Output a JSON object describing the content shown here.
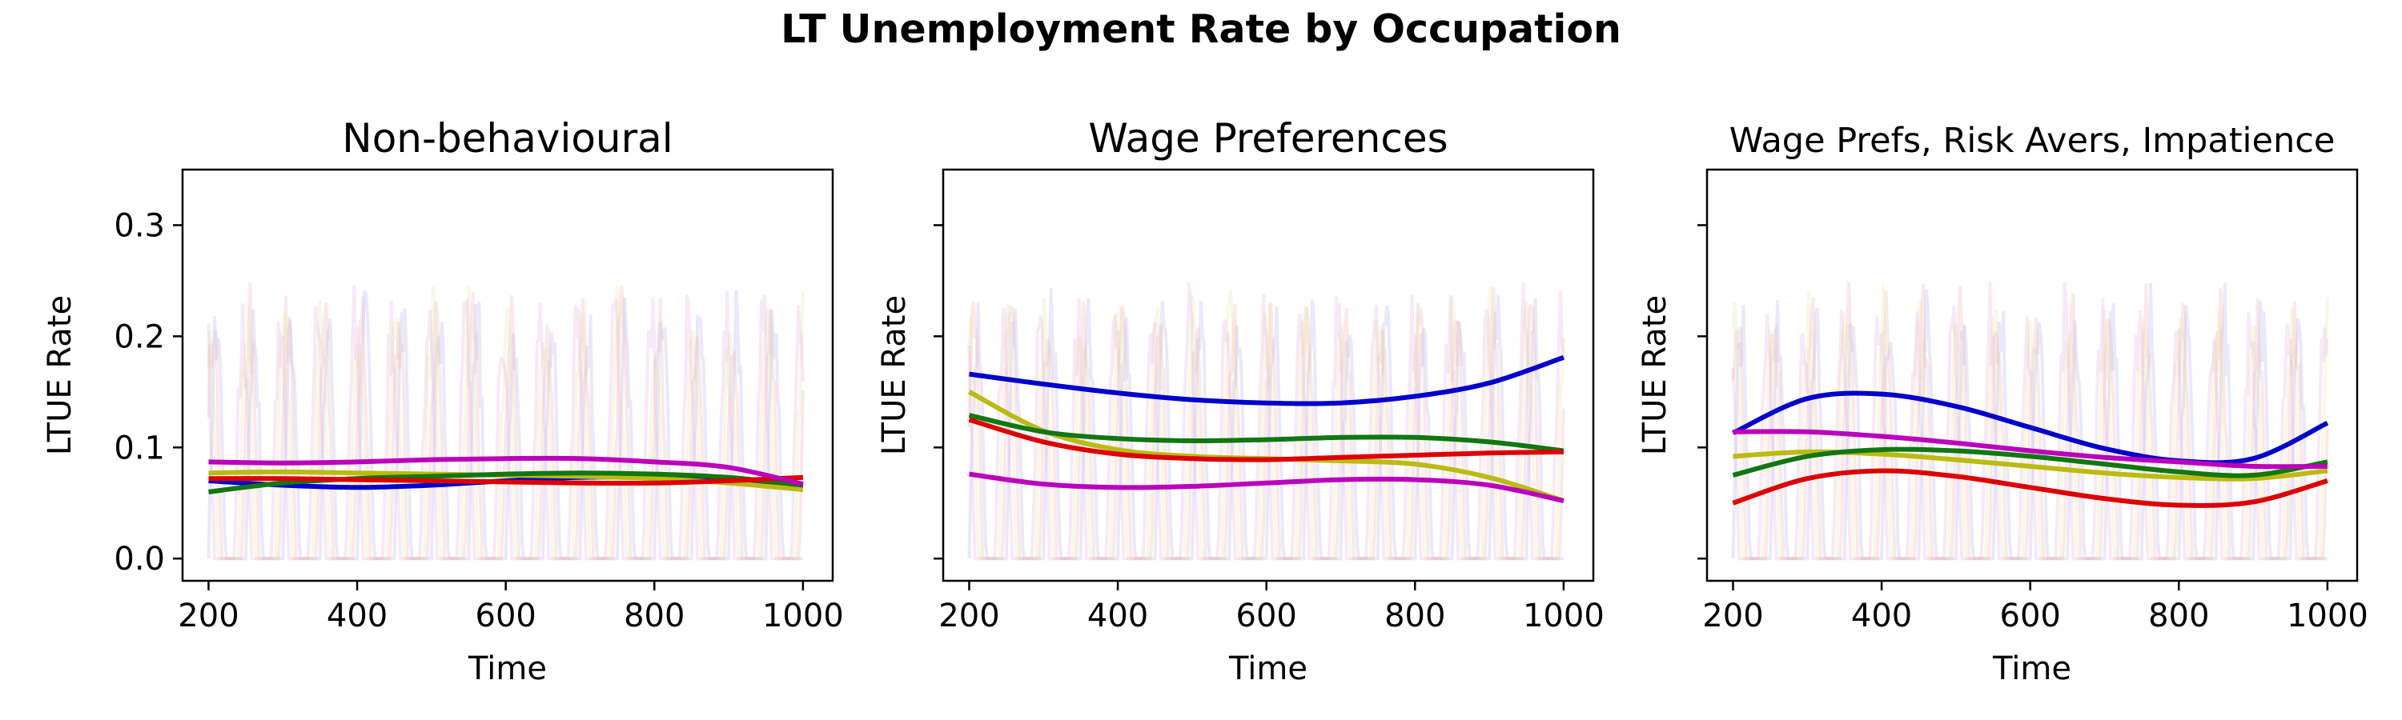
{
  "figure": {
    "title": "LT Unemployment Rate by Occupation"
  },
  "chart_data": [
    {
      "type": "line",
      "title": "Non-behavioural",
      "xlabel": "Time",
      "ylabel": "LTUE Rate",
      "xlim": [
        165,
        1040
      ],
      "ylim": [
        -0.02,
        0.35
      ],
      "xticks": [
        200,
        400,
        600,
        800,
        1000
      ],
      "yticks": [
        0.0,
        0.1,
        0.2,
        0.3
      ],
      "ytick_labels": [
        "0.0",
        "0.1",
        "0.2",
        "0.3"
      ],
      "x": [
        200,
        300,
        400,
        500,
        600,
        700,
        800,
        900,
        1000
      ],
      "series": [
        {
          "color": "#0000cc",
          "values": [
            0.07,
            0.066,
            0.064,
            0.066,
            0.07,
            0.073,
            0.073,
            0.07,
            0.064
          ]
        },
        {
          "color": "#bbbb11",
          "values": [
            0.077,
            0.078,
            0.077,
            0.076,
            0.075,
            0.074,
            0.072,
            0.068,
            0.062
          ]
        },
        {
          "color": "#117711",
          "values": [
            0.06,
            0.068,
            0.072,
            0.074,
            0.076,
            0.077,
            0.076,
            0.073,
            0.066
          ]
        },
        {
          "color": "#dd0000",
          "values": [
            0.072,
            0.072,
            0.071,
            0.07,
            0.069,
            0.068,
            0.068,
            0.07,
            0.073
          ]
        },
        {
          "color": "#bb00bb",
          "values": [
            0.087,
            0.086,
            0.087,
            0.089,
            0.09,
            0.09,
            0.087,
            0.082,
            0.067
          ]
        }
      ]
    },
    {
      "type": "line",
      "title": "Wage Preferences",
      "xlabel": "Time",
      "ylabel": "LTUE Rate",
      "xlim": [
        165,
        1040
      ],
      "ylim": [
        -0.02,
        0.35
      ],
      "xticks": [
        200,
        400,
        600,
        800,
        1000
      ],
      "yticks": [
        0.0,
        0.1,
        0.2,
        0.3
      ],
      "ytick_labels": [
        "",
        "",
        "",
        ""
      ],
      "x": [
        200,
        300,
        400,
        500,
        600,
        700,
        800,
        900,
        1000
      ],
      "series": [
        {
          "color": "#0000cc",
          "values": [
            0.166,
            0.157,
            0.149,
            0.143,
            0.14,
            0.14,
            0.146,
            0.158,
            0.181
          ]
        },
        {
          "color": "#bbbb11",
          "values": [
            0.15,
            0.115,
            0.098,
            0.092,
            0.09,
            0.088,
            0.085,
            0.073,
            0.052
          ]
        },
        {
          "color": "#117711",
          "values": [
            0.129,
            0.114,
            0.108,
            0.106,
            0.107,
            0.109,
            0.109,
            0.105,
            0.097
          ]
        },
        {
          "color": "#dd0000",
          "values": [
            0.125,
            0.105,
            0.094,
            0.09,
            0.089,
            0.091,
            0.093,
            0.095,
            0.096
          ]
        },
        {
          "color": "#bb00bb",
          "values": [
            0.076,
            0.067,
            0.064,
            0.065,
            0.068,
            0.071,
            0.071,
            0.066,
            0.052
          ]
        }
      ]
    },
    {
      "type": "line",
      "title": "Wage Prefs, Risk Avers, Impatience",
      "xlabel": "Time",
      "ylabel": "LTUE Rate",
      "xlim": [
        165,
        1040
      ],
      "ylim": [
        -0.02,
        0.35
      ],
      "xticks": [
        200,
        400,
        600,
        800,
        1000
      ],
      "yticks": [
        0.0,
        0.1,
        0.2,
        0.3
      ],
      "ytick_labels": [
        "",
        "",
        "",
        ""
      ],
      "x": [
        200,
        300,
        400,
        500,
        600,
        700,
        800,
        900,
        1000
      ],
      "series": [
        {
          "color": "#0000cc",
          "values": [
            0.113,
            0.144,
            0.148,
            0.137,
            0.118,
            0.099,
            0.088,
            0.09,
            0.122
          ]
        },
        {
          "color": "#bbbb11",
          "values": [
            0.092,
            0.096,
            0.094,
            0.089,
            0.083,
            0.077,
            0.073,
            0.072,
            0.079
          ]
        },
        {
          "color": "#117711",
          "values": [
            0.075,
            0.092,
            0.098,
            0.097,
            0.092,
            0.085,
            0.078,
            0.075,
            0.087
          ]
        },
        {
          "color": "#dd0000",
          "values": [
            0.05,
            0.072,
            0.079,
            0.074,
            0.064,
            0.054,
            0.048,
            0.051,
            0.07
          ]
        },
        {
          "color": "#bb00bb",
          "values": [
            0.114,
            0.114,
            0.11,
            0.104,
            0.097,
            0.091,
            0.087,
            0.083,
            0.083
          ]
        }
      ]
    }
  ]
}
